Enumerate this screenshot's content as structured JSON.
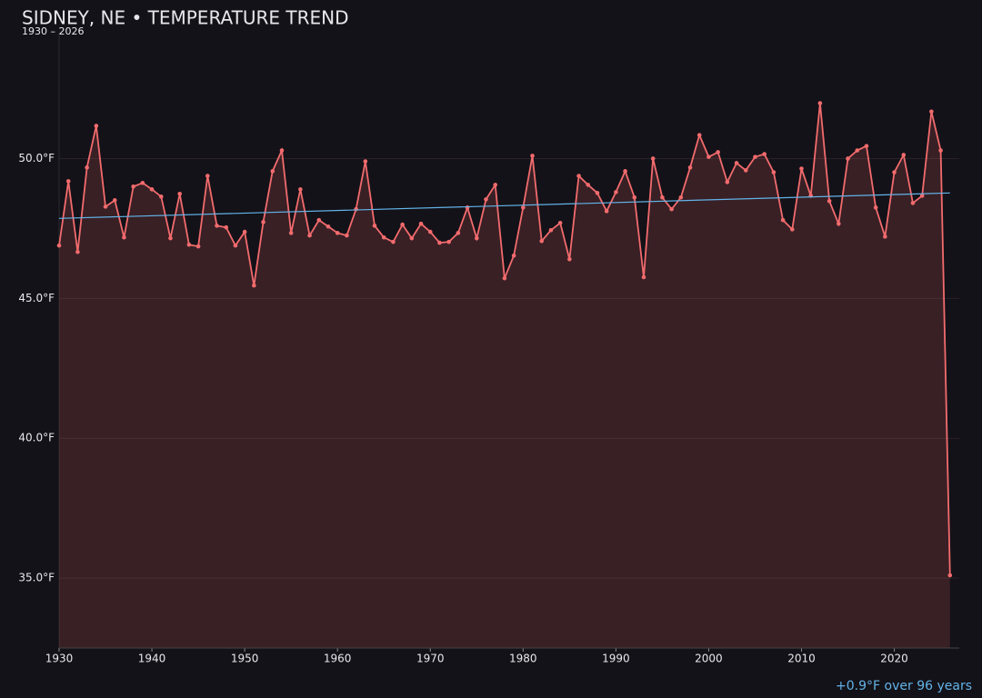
{
  "chart_data": {
    "type": "line",
    "title": "SIDNEY, NE • TEMPERATURE TREND",
    "subtitle": "1930 – 2026",
    "x": [
      1930,
      1931,
      1932,
      1933,
      1934,
      1935,
      1936,
      1937,
      1938,
      1939,
      1940,
      1941,
      1942,
      1943,
      1944,
      1945,
      1946,
      1947,
      1948,
      1949,
      1950,
      1951,
      1952,
      1953,
      1954,
      1955,
      1956,
      1957,
      1958,
      1959,
      1960,
      1961,
      1962,
      1963,
      1964,
      1965,
      1966,
      1967,
      1968,
      1969,
      1970,
      1971,
      1972,
      1973,
      1974,
      1975,
      1976,
      1977,
      1978,
      1979,
      1980,
      1981,
      1982,
      1983,
      1984,
      1985,
      1986,
      1987,
      1988,
      1989,
      1990,
      1991,
      1992,
      1993,
      1994,
      1995,
      1996,
      1997,
      1998,
      1999,
      2000,
      2001,
      2002,
      2003,
      2004,
      2005,
      2006,
      2007,
      2008,
      2009,
      2010,
      2011,
      2012,
      2013,
      2014,
      2015,
      2016,
      2017,
      2018,
      2019,
      2020,
      2021,
      2022,
      2023,
      2024,
      2025,
      2026
    ],
    "series": [
      {
        "color": "#f26b6d",
        "values": [
          46.89,
          49.19,
          46.66,
          49.68,
          51.17,
          48.28,
          48.51,
          47.18,
          49.0,
          49.13,
          48.9,
          48.64,
          47.15,
          48.74,
          46.92,
          46.86,
          49.38,
          47.6,
          47.54,
          46.89,
          47.38,
          45.46,
          47.73,
          49.55,
          50.29,
          47.34,
          48.9,
          47.25,
          47.8,
          47.57,
          47.34,
          47.25,
          48.19,
          49.9,
          47.6,
          47.18,
          47.02,
          47.64,
          47.15,
          47.67,
          47.38,
          46.99,
          47.02,
          47.34,
          48.25,
          47.15,
          48.54,
          49.06,
          45.72,
          46.53,
          48.25,
          50.1,
          47.05,
          47.44,
          47.7,
          46.4,
          49.38,
          49.06,
          48.77,
          48.12,
          48.8,
          49.55,
          48.61,
          45.76,
          50.0,
          48.61,
          48.19,
          48.61,
          49.68,
          50.84,
          50.06,
          50.23,
          49.16,
          49.84,
          49.58,
          50.06,
          50.16,
          49.51,
          47.8,
          47.47,
          49.64,
          48.67,
          51.98,
          48.48,
          47.67,
          50.0,
          50.29,
          50.45,
          48.25,
          47.21,
          49.51,
          50.13,
          48.41,
          48.67,
          51.68,
          50.29,
          35.1
        ]
      }
    ],
    "trend": {
      "color": "#63b3e8",
      "x": [
        1930,
        2026
      ],
      "values": [
        47.86,
        48.77
      ]
    },
    "annotation": "+0.9°F over 96 years",
    "xlim": [
      1930,
      2027
    ],
    "ylim": [
      32.5,
      54.5
    ],
    "xticks": [
      1930,
      1940,
      1950,
      1960,
      1970,
      1980,
      1990,
      2000,
      2010,
      2020
    ],
    "yticks": [
      {
        "value": 35,
        "label": "35.0°F"
      },
      {
        "value": 40,
        "label": "40.0°F"
      },
      {
        "value": 45,
        "label": "45.0°F"
      },
      {
        "value": 50,
        "label": "50.0°F"
      }
    ],
    "grid": true
  }
}
